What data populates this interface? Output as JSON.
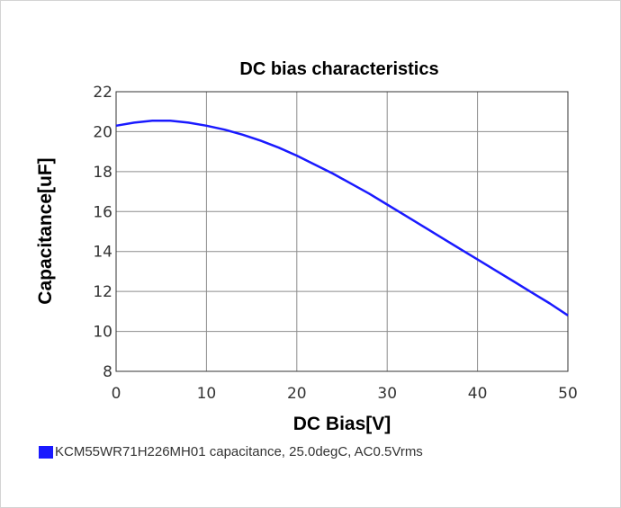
{
  "chart_data": {
    "type": "line",
    "title": "DC bias characteristics",
    "xlabel": "DC Bias[V]",
    "ylabel": "Capacitance[uF]",
    "xlim": [
      0,
      50
    ],
    "ylim": [
      8,
      22
    ],
    "xticks": [
      "0",
      "10",
      "20",
      "30",
      "40",
      "50"
    ],
    "yticks": [
      "8",
      "10",
      "12",
      "14",
      "16",
      "18",
      "20",
      "22"
    ],
    "grid": true,
    "legend_position": "bottom-left",
    "series": [
      {
        "name": "KCM55WR71H226MH01 capacitance, 25.0degC, AC0.5Vrms",
        "color": "#1a1aff",
        "x": [
          0,
          2,
          4,
          6,
          8,
          10,
          12,
          14,
          16,
          18,
          20,
          22,
          24,
          26,
          28,
          30,
          32,
          34,
          36,
          38,
          40,
          42,
          44,
          46,
          48,
          50
        ],
        "y": [
          20.3,
          20.45,
          20.55,
          20.55,
          20.45,
          20.3,
          20.1,
          19.85,
          19.55,
          19.2,
          18.8,
          18.35,
          17.9,
          17.4,
          16.9,
          16.35,
          15.8,
          15.25,
          14.7,
          14.15,
          13.6,
          13.05,
          12.5,
          11.95,
          11.4,
          10.8
        ]
      }
    ]
  }
}
